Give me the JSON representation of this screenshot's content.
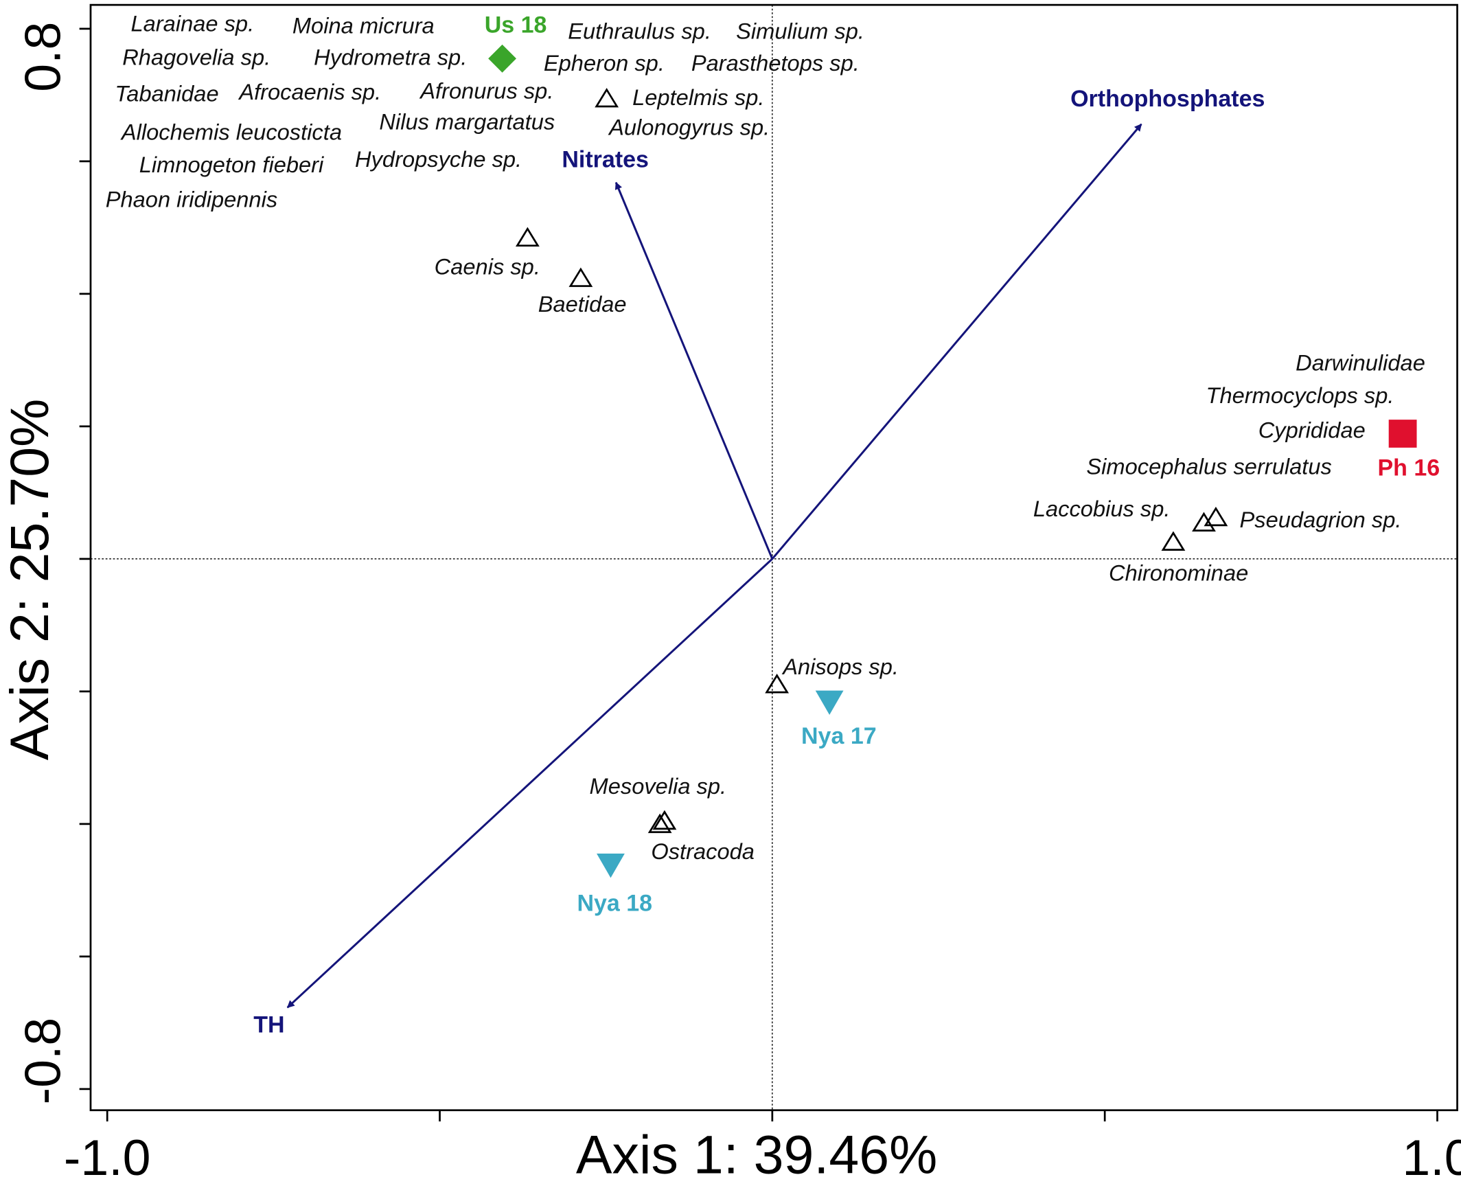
{
  "chart_data": {
    "type": "biplot",
    "xlabel": "Axis 1: 39.46%",
    "ylabel": "Axis 2: 25.70%",
    "xlim": [
      -1.025,
      1.03
    ],
    "ylim": [
      -0.832,
      0.836
    ],
    "xticks": [
      {
        "value": -1.0,
        "label": "-1.0"
      },
      {
        "value": -0.5
      },
      {
        "value": 0
      },
      {
        "value": 0.5
      },
      {
        "value": 1.0,
        "label": "1.0"
      }
    ],
    "yticks": [
      {
        "value": -0.8,
        "label": "-0.8"
      },
      {
        "value": -0.6
      },
      {
        "value": -0.4
      },
      {
        "value": -0.2
      },
      {
        "value": 0
      },
      {
        "value": 0.2
      },
      {
        "value": 0.4
      },
      {
        "value": 0.6
      },
      {
        "value": 0.8,
        "label": "0.8"
      }
    ],
    "arrow_color": "#14147a",
    "arrows": [
      {
        "name": "Nitrates",
        "x": -0.235,
        "y": 0.568
      },
      {
        "name": "Orthophosphates",
        "x": 0.555,
        "y": 0.656
      },
      {
        "name": "TH",
        "x": -0.729,
        "y": -0.677
      }
    ],
    "sites": [
      {
        "name": "Us 18",
        "color": "#3aa52a",
        "marker": "diamond",
        "x": -0.406,
        "y": 0.755
      },
      {
        "name": "Ph 16",
        "color": "#e0102e",
        "marker": "square",
        "x": 0.948,
        "y": 0.189
      },
      {
        "name": "Nya 17",
        "color": "#3ba9c4",
        "marker": "triangle-down",
        "x": 0.086,
        "y": -0.217
      },
      {
        "name": "Nya 18",
        "color": "#3ba9c4",
        "marker": "triangle-down",
        "x": -0.243,
        "y": -0.463
      }
    ],
    "species_points": {
      "x": [
        -0.249,
        -0.368,
        -0.288,
        0.603,
        0.649,
        0.667,
        0.007,
        -0.169,
        -0.162
      ],
      "y": [
        0.694,
        0.484,
        0.423,
        0.025,
        0.054,
        0.062,
        -0.19,
        -0.401,
        -0.396
      ]
    },
    "species": [
      "Larainae sp.",
      "Moina micrura",
      "Euthraulus sp.",
      "Simulium sp.",
      "Rhagovelia sp.",
      "Hydrometra sp.",
      "Epheron sp.",
      "Parasthetops sp.",
      "Tabanidae",
      "Afrocaenis sp.",
      "Afronurus sp.",
      "Leptelmis sp.",
      "Allochemis leucosticta",
      "Nilus margartatus",
      "Aulonogyrus sp.",
      "Limnogeton fieberi",
      "Hydropsyche sp.",
      "Phaon iridipennis",
      "Caenis sp.",
      "Baetidae",
      "Darwinulidae",
      "Thermocyclops sp.",
      "Cyprididae",
      "Simocephalus serrulatus",
      "Laccobius sp.",
      "Pseudagrion sp.",
      "Chironominae",
      "Anisops sp.",
      "Mesovelia sp.",
      "Ostracoda"
    ]
  }
}
